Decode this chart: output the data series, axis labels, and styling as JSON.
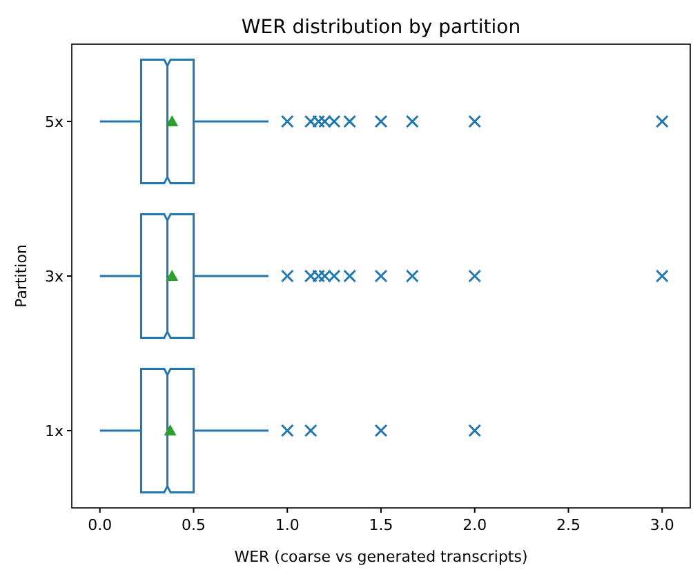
{
  "chart_data": {
    "type": "box",
    "orientation": "horizontal",
    "title": "WER distribution by partition",
    "xlabel": "WER (coarse vs generated transcripts)",
    "ylabel": "Partition",
    "categories": [
      "5x",
      "3x",
      "1x"
    ],
    "color": "#1f77b4",
    "marker": "cross",
    "boxes": [
      {
        "low": 0,
        "q1": 0.22,
        "median": 0.36,
        "q3": 0.5,
        "high": 0.9,
        "mean": 0.385,
        "outliers": [
          1.0,
          1.125,
          1.167,
          1.2,
          1.25,
          1.333,
          1.5,
          1.667,
          2.0,
          3.0
        ]
      },
      {
        "low": 0,
        "q1": 0.22,
        "median": 0.36,
        "q3": 0.5,
        "high": 0.9,
        "mean": 0.385,
        "outliers": [
          1.0,
          1.125,
          1.167,
          1.2,
          1.25,
          1.333,
          1.5,
          1.667,
          2.0,
          3.0
        ]
      },
      {
        "low": 0,
        "q1": 0.22,
        "median": 0.36,
        "q3": 0.5,
        "high": 0.9,
        "mean": 0.375,
        "outliers": [
          1.0,
          1.125,
          1.5,
          2.0
        ]
      }
    ],
    "xlim": [
      -0.15,
      3.15
    ],
    "xticks": [
      {
        "value": 0,
        "label": "0.0"
      },
      {
        "value": 0.5,
        "label": "0.5"
      },
      {
        "value": 1,
        "label": "1.0"
      },
      {
        "value": 1.5,
        "label": "1.5"
      },
      {
        "value": 2,
        "label": "2.0"
      },
      {
        "value": 2.5,
        "label": "2.5"
      },
      {
        "value": 3,
        "label": "3.0"
      }
    ],
    "grid": false
  }
}
